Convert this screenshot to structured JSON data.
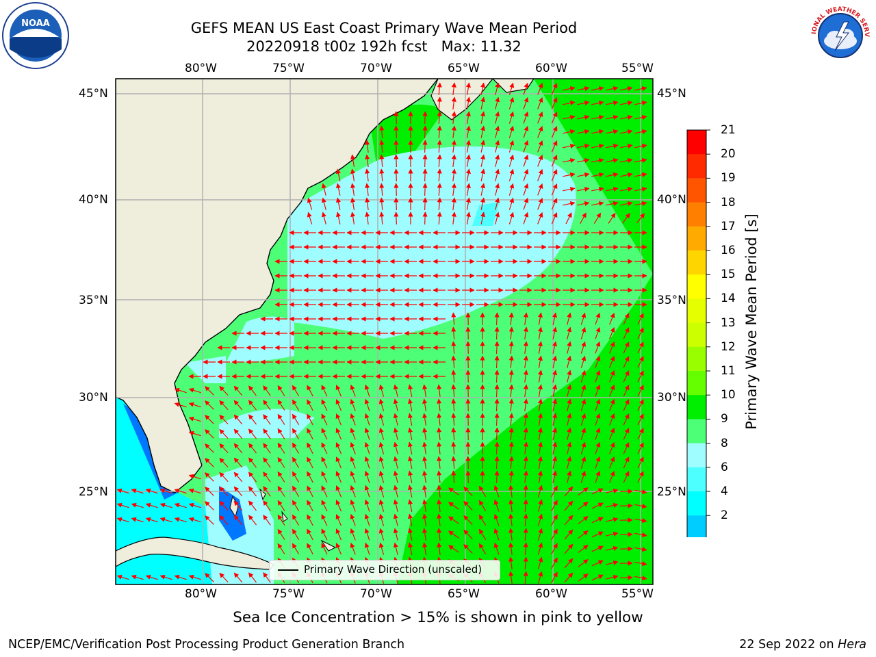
{
  "header": {
    "title": "GEFS MEAN US East Coast Primary Wave Mean Period",
    "subtitle": "20220918 t00z 192h fcst   Max: 11.32"
  },
  "logos": {
    "left": {
      "icon": "noaa-logo",
      "text": "NOAA"
    },
    "right": {
      "icon": "nws-logo",
      "text": "NATIONAL WEATHER SERVICE"
    }
  },
  "map": {
    "lon_labels": [
      "80°W",
      "75°W",
      "70°W",
      "65°W",
      "60°W",
      "55°W"
    ],
    "lat_labels": [
      "45°N",
      "40°N",
      "35°N",
      "30°N",
      "25°N"
    ],
    "land_color": "#efeddc",
    "arrow_color": "#ff0000",
    "grid_color": "#b0b0b0"
  },
  "legend": {
    "label": "Primary Wave Direction (unscaled)"
  },
  "colorbar": {
    "title": "Primary Wave Mean Period [s]",
    "ticks": [
      "21",
      "20",
      "19",
      "18",
      "17",
      "16",
      "15",
      "14",
      "13",
      "12",
      "11",
      "10",
      "9",
      "8",
      "6",
      "4",
      "2"
    ],
    "colors": [
      "#ff0000",
      "#ff2a00",
      "#ff5500",
      "#ff8000",
      "#ffaa00",
      "#ffd500",
      "#ffff00",
      "#e6ff00",
      "#ccff00",
      "#99ff00",
      "#66ff00",
      "#00ee00",
      "#4dff77",
      "#9ffcff",
      "#4dffff",
      "#00ffff",
      "#00cdff",
      "#0077ff"
    ],
    "extend_color": "#0000ff"
  },
  "caption": "Sea Ice Concentration > 15% is shown in pink to yellow",
  "footer": {
    "left": "NCEP/EMC/Verification Post Processing Product Generation Branch",
    "right_date": "22 Sep 2022 on ",
    "right_host": "Hera"
  }
}
